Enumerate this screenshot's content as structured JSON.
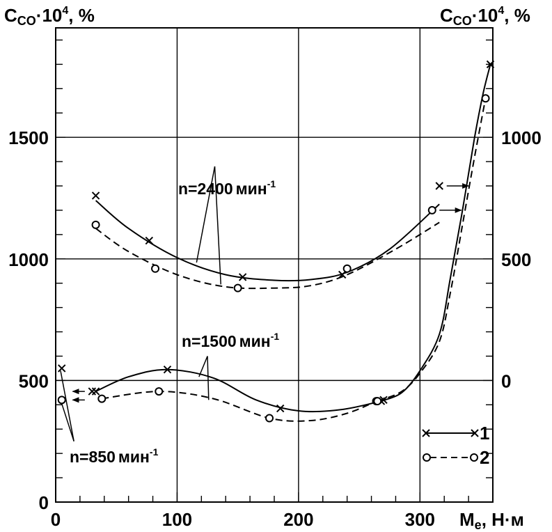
{
  "chart_data": {
    "type": "line",
    "left_axis_label": {
      "main": "C",
      "sub": "CO",
      "tail": "·10",
      "sup": "4",
      "end": ", %"
    },
    "right_axis_label": {
      "main": "C",
      "sub": "CO",
      "tail": "·10",
      "sup": "4",
      "end": ", %"
    },
    "x_axis_label": {
      "main": "M",
      "sub": "e",
      "end": ", Н·м"
    },
    "xlim": [
      0,
      360
    ],
    "ylim_left": [
      0,
      1950
    ],
    "right_axis_offset": 500,
    "x_ticks": [
      0,
      100,
      200,
      300
    ],
    "x_tick_labels": [
      "0",
      "100",
      "200",
      "300"
    ],
    "y_ticks_left": [
      0,
      500,
      1000,
      1500
    ],
    "y_tick_labels_left": [
      "0",
      "500",
      "1000",
      "1500"
    ],
    "y_ticks_right": [
      0,
      500,
      1000
    ],
    "y_tick_labels_right": [
      "0",
      "500",
      "1000"
    ],
    "grid": true,
    "legend": {
      "placement": "bottom-right",
      "items": [
        {
          "label": "1",
          "style": "solid",
          "marker": "x"
        },
        {
          "label": "2",
          "style": "dashed",
          "marker": "o"
        }
      ]
    },
    "annotations": {
      "n2400": {
        "text": "n=2400",
        "unit": "мин",
        "sup": "-1"
      },
      "n1500": {
        "text": "n=1500",
        "unit": "мин",
        "sup": "-1"
      },
      "n850": {
        "text": "n=850",
        "unit": "мин",
        "sup": "-1"
      }
    },
    "series": [
      {
        "id": "n2400-1",
        "axis": "left",
        "style": "solid",
        "marker": "x",
        "points": [
          [
            33,
            1260
          ],
          [
            77,
            1075
          ],
          [
            154,
            925
          ],
          [
            236,
            935
          ],
          [
            316,
            1300
          ]
        ],
        "curve": [
          [
            33,
            1240
          ],
          [
            60,
            1125
          ],
          [
            100,
            1005
          ],
          [
            140,
            935
          ],
          [
            180,
            912
          ],
          [
            210,
            915
          ],
          [
            240,
            945
          ],
          [
            275,
            1040
          ],
          [
            316,
            1225
          ]
        ]
      },
      {
        "id": "n2400-2",
        "axis": "left",
        "style": "dashed",
        "marker": "o",
        "points": [
          [
            33,
            1140
          ],
          [
            82,
            960
          ],
          [
            150,
            880
          ],
          [
            240,
            960
          ],
          [
            310,
            1200
          ]
        ],
        "curve": [
          [
            33,
            1125
          ],
          [
            60,
            1030
          ],
          [
            100,
            935
          ],
          [
            140,
            885
          ],
          [
            180,
            880
          ],
          [
            210,
            890
          ],
          [
            240,
            935
          ],
          [
            280,
            1040
          ],
          [
            316,
            1150
          ]
        ]
      },
      {
        "id": "n1500-1",
        "axis": "left",
        "style": "solid",
        "marker": "x",
        "points": [
          [
            33,
            455
          ],
          [
            92,
            545
          ],
          [
            185,
            385
          ],
          [
            268,
            415
          ]
        ],
        "curve": [
          [
            33,
            455
          ],
          [
            60,
            515
          ],
          [
            92,
            545
          ],
          [
            130,
            510
          ],
          [
            165,
            420
          ],
          [
            200,
            375
          ],
          [
            235,
            380
          ],
          [
            268,
            415
          ]
        ]
      },
      {
        "id": "n1500-2",
        "axis": "left",
        "style": "dashed",
        "marker": "o",
        "points": [
          [
            38,
            425
          ],
          [
            85,
            455
          ],
          [
            176,
            345
          ],
          [
            264,
            415
          ]
        ],
        "curve": [
          [
            38,
            425
          ],
          [
            85,
            455
          ],
          [
            130,
            425
          ],
          [
            176,
            345
          ],
          [
            210,
            335
          ],
          [
            240,
            365
          ],
          [
            264,
            415
          ]
        ]
      },
      {
        "id": "n850-1",
        "axis": "right",
        "style": "none",
        "marker": "x",
        "points": [
          [
            5,
            50
          ]
        ]
      },
      {
        "id": "n850-2",
        "axis": "right",
        "style": "none",
        "marker": "o",
        "points": [
          [
            5,
            -80
          ]
        ]
      },
      {
        "id": "right-1",
        "axis": "right",
        "style": "solid",
        "marker": "x",
        "points": [
          [
            30,
            -45
          ],
          [
            270,
            -80
          ],
          [
            358,
            1300
          ]
        ],
        "curve": [
          [
            268,
            -85
          ],
          [
            285,
            -50
          ],
          [
            300,
            40
          ],
          [
            316,
            190
          ],
          [
            325,
            420
          ],
          [
            335,
            700
          ],
          [
            345,
            1000
          ],
          [
            352,
            1180
          ],
          [
            358,
            1300
          ]
        ]
      },
      {
        "id": "right-2",
        "axis": "right",
        "style": "dashed",
        "marker": "o",
        "points": [
          [
            265,
            -85
          ],
          [
            354,
            1160
          ]
        ],
        "curve": [
          [
            265,
            -85
          ],
          [
            285,
            -45
          ],
          [
            300,
            30
          ],
          [
            316,
            160
          ],
          [
            325,
            360
          ],
          [
            335,
            640
          ],
          [
            345,
            920
          ],
          [
            354,
            1160
          ]
        ]
      }
    ],
    "arrows": [
      {
        "axis": "right",
        "from": [
          24,
          -45
        ],
        "to": [
          14,
          -45
        ]
      },
      {
        "axis": "right",
        "from": [
          24,
          -80
        ],
        "to": [
          14,
          -80
        ]
      },
      {
        "axis": "left",
        "from": [
          322,
          1300
        ],
        "to": [
          340,
          1300
        ]
      },
      {
        "axis": "left",
        "from": [
          316,
          1200
        ],
        "to": [
          334,
          1200
        ]
      }
    ],
    "pointer_lines": [
      {
        "from": [
          131,
          1380
        ],
        "to": [
          116,
          985
        ]
      },
      {
        "from": [
          131,
          1380
        ],
        "to": [
          136,
          895
        ]
      },
      {
        "from": [
          125,
          600
        ],
        "to": [
          118,
          515
        ]
      },
      {
        "from": [
          125,
          600
        ],
        "to": [
          126,
          420
        ]
      },
      {
        "from": [
          15,
          250
        ],
        "to": [
          4,
          540
        ]
      },
      {
        "from": [
          15,
          250
        ],
        "to": [
          4,
          420
        ]
      }
    ]
  }
}
